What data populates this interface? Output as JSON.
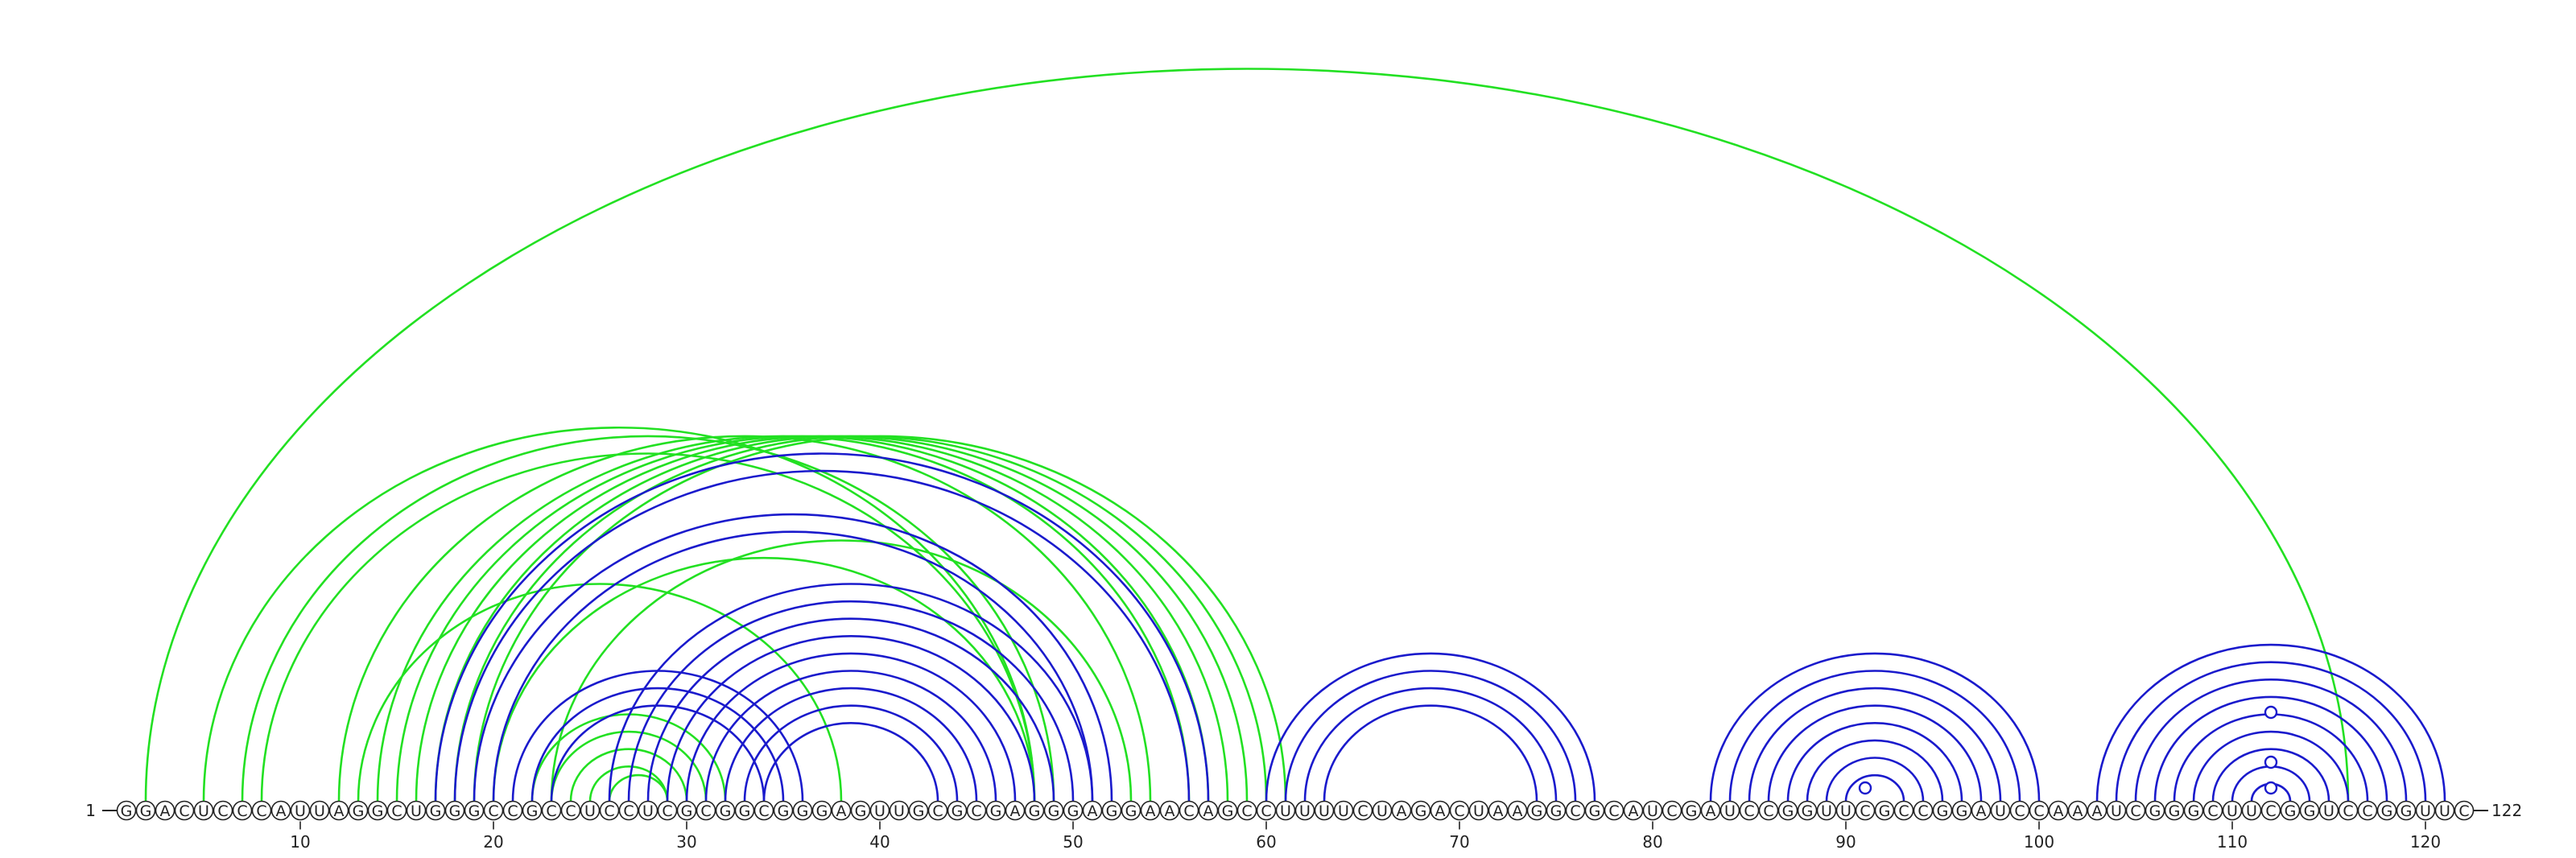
{
  "sequence": {
    "start_label": "1",
    "end_label": "122",
    "bases": "GGACUCCCAUUAGGCUGGGCCGCCUCCUCGCGGCGGGAGUUGCGCGAGGGAGGAACAGCCUUUUCUAGACUAAGGCGCAUCGAUCCGGUUCGCCGGAUCCAAAUCGGGCUUCGGUCCGGUUC",
    "ticks": [
      10,
      20,
      30,
      40,
      50,
      60,
      70,
      80,
      90,
      100,
      110,
      120
    ],
    "marked_positions": [
      91,
      112
    ]
  },
  "colors": {
    "green": "#22e022",
    "blue": "#1a1acc",
    "text": "#222222"
  },
  "arcs": {
    "green": [
      [
        2,
        116
      ],
      [
        5,
        48
      ],
      [
        7,
        49
      ],
      [
        8,
        48
      ],
      [
        12,
        54
      ],
      [
        14,
        56
      ],
      [
        15,
        57
      ],
      [
        16,
        58
      ],
      [
        17,
        59
      ],
      [
        18,
        60
      ],
      [
        19,
        61
      ],
      [
        13,
        38
      ],
      [
        22,
        32
      ],
      [
        23,
        31
      ],
      [
        24,
        30
      ],
      [
        25,
        29
      ],
      [
        26,
        29
      ],
      [
        20,
        48
      ],
      [
        23,
        53
      ]
    ],
    "blue": [
      [
        17,
        57
      ],
      [
        18,
        56
      ],
      [
        19,
        52
      ],
      [
        20,
        51
      ],
      [
        21,
        36
      ],
      [
        22,
        35
      ],
      [
        23,
        34
      ],
      [
        26,
        51
      ],
      [
        27,
        50
      ],
      [
        28,
        49
      ],
      [
        29,
        48
      ],
      [
        30,
        47
      ],
      [
        31,
        46
      ],
      [
        32,
        45
      ],
      [
        33,
        44
      ],
      [
        34,
        43
      ],
      [
        60,
        77
      ],
      [
        61,
        76
      ],
      [
        62,
        75
      ],
      [
        63,
        74
      ],
      [
        83,
        100
      ],
      [
        84,
        99
      ],
      [
        85,
        98
      ],
      [
        86,
        97
      ],
      [
        87,
        96
      ],
      [
        88,
        95
      ],
      [
        89,
        94
      ],
      [
        90,
        93
      ],
      [
        103,
        121
      ],
      [
        104,
        120
      ],
      [
        105,
        119
      ],
      [
        106,
        118
      ],
      [
        107,
        117
      ],
      [
        108,
        116
      ],
      [
        109,
        115
      ],
      [
        110,
        114
      ],
      [
        111,
        113
      ]
    ]
  }
}
